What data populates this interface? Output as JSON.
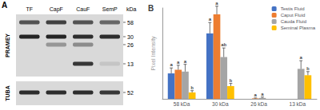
{
  "panel_a": {
    "label": "A",
    "unit": "kDa",
    "lanes": [
      "TF",
      "CapF",
      "CauF",
      "SemP"
    ],
    "blots": [
      {
        "name": "PRAMEY",
        "markers": [
          58,
          30,
          26,
          13
        ]
      },
      {
        "name": "TUBA",
        "markers": [
          52
        ]
      }
    ]
  },
  "chart_data": {
    "type": "bar",
    "title": "B",
    "y_label": "Pixel Intensity",
    "categories": [
      "58 kDa",
      "30 kDa",
      "26 kDa",
      "13 kDa"
    ],
    "series": [
      {
        "name": "Testis Fluid",
        "color": "#4472c4",
        "values": [
          28,
          72,
          0,
          0
        ],
        "errors": [
          6,
          12,
          0,
          0
        ]
      },
      {
        "name": "Caput Fluid",
        "color": "#ed7d31",
        "values": [
          32,
          93,
          0.5,
          0
        ],
        "errors": [
          5,
          9,
          0.5,
          0
        ]
      },
      {
        "name": "Cauda Fluid",
        "color": "#a5a5a5",
        "values": [
          30,
          46,
          1,
          33
        ],
        "errors": [
          8,
          10,
          1,
          9
        ]
      },
      {
        "name": "Seminal Plasma",
        "color": "#ffc000",
        "values": [
          7,
          14,
          0,
          26
        ],
        "errors": [
          2,
          3,
          0,
          4
        ]
      }
    ],
    "annotations": [
      {
        "category": "58 kDa",
        "series": "Testis Fluid",
        "text": "a"
      },
      {
        "category": "58 kDa",
        "series": "Caput Fluid",
        "text": "a"
      },
      {
        "category": "58 kDa",
        "series": "Cauda Fluid",
        "text": "a"
      },
      {
        "category": "58 kDa",
        "series": "Seminal Plasma",
        "text": "b"
      },
      {
        "category": "30 kDa",
        "series": "Testis Fluid",
        "text": "a"
      },
      {
        "category": "30 kDa",
        "series": "Caput Fluid",
        "text": "a"
      },
      {
        "category": "30 kDa",
        "series": "Cauda Fluid",
        "text": "ab"
      },
      {
        "category": "30 kDa",
        "series": "Seminal Plasma",
        "text": "b"
      },
      {
        "category": "26 kDa",
        "series": "Caput Fluid",
        "text": "a"
      },
      {
        "category": "26 kDa",
        "series": "Cauda Fluid",
        "text": "a"
      },
      {
        "category": "13 kDa",
        "series": "Cauda Fluid",
        "text": "a"
      },
      {
        "category": "13 kDa",
        "series": "Seminal Plasma",
        "text": "b"
      }
    ],
    "ylim": [
      0,
      100
    ],
    "grid": false,
    "legend": "upper right",
    "tick_labels": "x"
  }
}
